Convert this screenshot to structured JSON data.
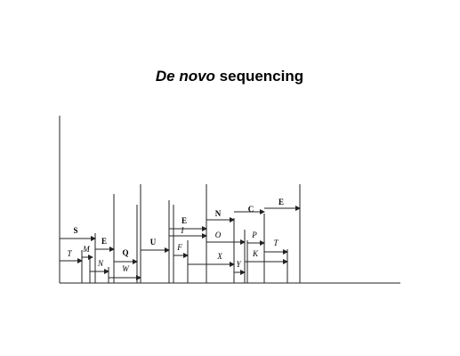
{
  "title": {
    "italic": "De novo",
    "bold": "sequencing"
  },
  "labels": [
    "S",
    "T",
    "M",
    "E",
    "N",
    "Q",
    "W",
    "U",
    "E",
    "I",
    "F",
    "N",
    "O",
    "X",
    "C",
    "P",
    "Y",
    "K",
    "T",
    "E"
  ]
}
